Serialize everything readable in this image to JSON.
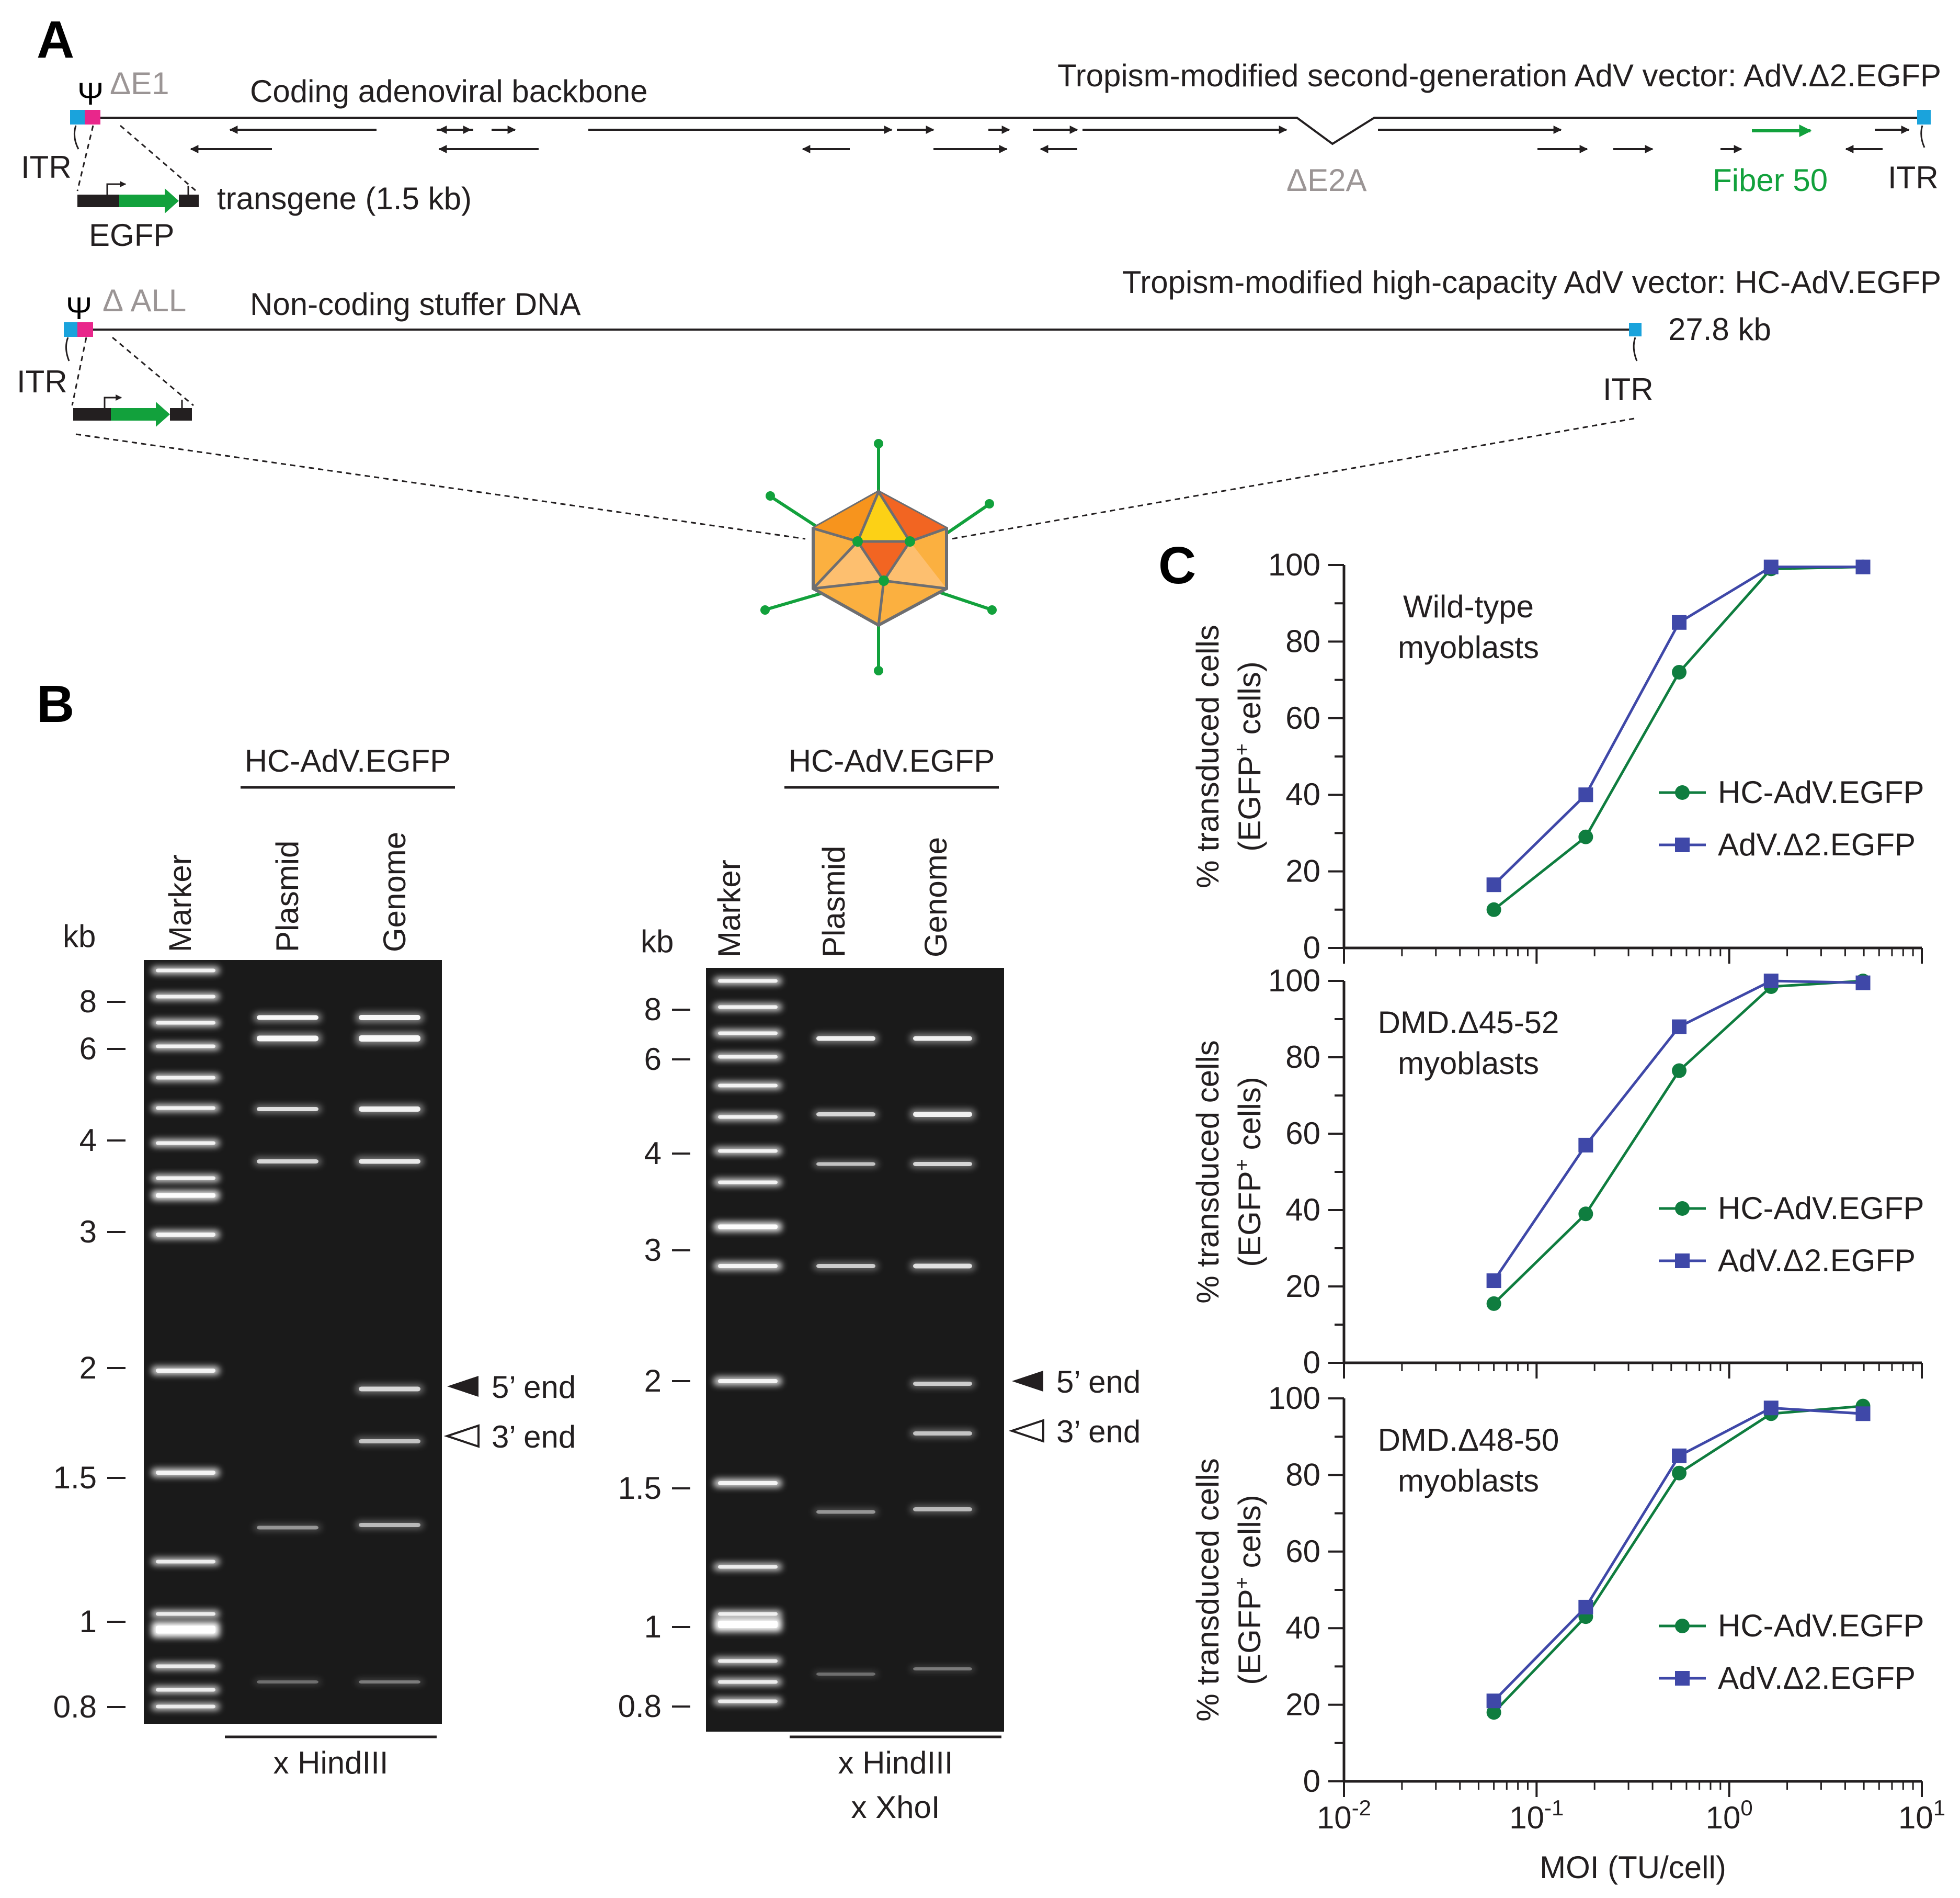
{
  "panel_a": {
    "letter": "A",
    "vector1": {
      "title": "Tropism-modified second-generation AdV vector: AdV.Δ2.EGFP",
      "psi": "Ψ",
      "deletion_e1": "ΔE1",
      "backbone_label": "Coding adenoviral backbone",
      "itr_left": "ITR",
      "itr_right": "ITR",
      "transgene_label": "transgene (1.5 kb)",
      "egfp_label": "EGFP",
      "deletion_e2a": "ΔE2A",
      "fiber_label": "Fiber 50"
    },
    "vector2": {
      "title": "Tropism-modified high-capacity AdV vector: HC-AdV.EGFP",
      "psi": "Ψ",
      "deletion_all": "Δ ALL",
      "stuffer_label": "Non-coding stuffer DNA",
      "size_label": "27.8 kb",
      "itr_left": "ITR",
      "itr_right": "ITR"
    },
    "colors": {
      "itr": "#1aa3dc",
      "psi": "#e9268b",
      "egfp": "#12a13c",
      "gray_text": "#9b9595",
      "capsid_light": "#fbb040",
      "capsid_dark": "#f26522",
      "capsid_yellow": "#fcd116"
    }
  },
  "panel_b": {
    "letter": "B",
    "gel1": {
      "header": "HC-AdV.EGFP",
      "lanes": [
        "Marker",
        "Plasmid",
        "Genome"
      ],
      "kb_label": "kb",
      "marker_ticks": [
        "8",
        "6",
        "4",
        "3",
        "2",
        "1.5",
        "1",
        "0.8"
      ],
      "digest": [
        "x HindIII"
      ],
      "end_labels": [
        "5’ end",
        "3’ end"
      ]
    },
    "gel2": {
      "header": "HC-AdV.EGFP",
      "lanes": [
        "Marker",
        "Plasmid",
        "Genome"
      ],
      "kb_label": "kb",
      "marker_ticks": [
        "8",
        "6",
        "4",
        "3",
        "2",
        "1.5",
        "1",
        "0.8"
      ],
      "digest": [
        "x HindIII",
        "x XhoI"
      ],
      "end_labels": [
        "5’ end",
        "3’ end"
      ]
    }
  },
  "panel_c": {
    "letter": "C"
  },
  "chart_data": [
    {
      "type": "line",
      "title": "Wild-type myoblasts",
      "title_lines": [
        "Wild-type",
        "myoblasts"
      ],
      "ylabel_lines": [
        "% transduced cells",
        "(EGFP",
        "+",
        " cells)"
      ],
      "xlabel": "MOI (TU/cell)",
      "xscale": "log",
      "xlim": [
        0.01,
        10
      ],
      "ylim": [
        0,
        100
      ],
      "yticks": [
        "0",
        "20",
        "40",
        "60",
        "80",
        "100"
      ],
      "x": [
        0.06,
        0.18,
        0.55,
        1.65,
        4.95
      ],
      "series": [
        {
          "name": "HC-AdV.EGFP",
          "values": [
            10,
            29,
            72,
            99,
            99.5
          ],
          "color": "#0f7d3f",
          "marker": "circle"
        },
        {
          "name": "AdV.Δ2.EGFP",
          "values": [
            16.5,
            40,
            85,
            99.5,
            99.5
          ],
          "color": "#3f48a8",
          "marker": "square"
        }
      ],
      "legend": "right"
    },
    {
      "type": "line",
      "title": "DMD.Δ45-52 myoblasts",
      "title_lines": [
        "DMD.Δ45-52",
        "myoblasts"
      ],
      "ylabel_lines": [
        "% transduced cells",
        "(EGFP",
        "+",
        " cells)"
      ],
      "xlabel": "MOI (TU/cell)",
      "xscale": "log",
      "xlim": [
        0.01,
        10
      ],
      "ylim": [
        0,
        100
      ],
      "yticks": [
        "0",
        "20",
        "40",
        "60",
        "80",
        "100"
      ],
      "x": [
        0.06,
        0.18,
        0.55,
        1.65,
        4.95
      ],
      "series": [
        {
          "name": "HC-AdV.EGFP",
          "values": [
            15.5,
            39,
            76.5,
            98.5,
            100
          ],
          "color": "#0f7d3f",
          "marker": "circle"
        },
        {
          "name": "AdV.Δ2.EGFP",
          "values": [
            21.5,
            57,
            88,
            100,
            99.5
          ],
          "color": "#3f48a8",
          "marker": "square"
        }
      ],
      "legend": "right"
    },
    {
      "type": "line",
      "title": "DMD.Δ48-50 myoblasts",
      "title_lines": [
        "DMD.Δ48-50",
        "myoblasts"
      ],
      "ylabel_lines": [
        "% transduced cells",
        "(EGFP",
        "+",
        " cells)"
      ],
      "xlabel": "MOI (TU/cell)",
      "xscale": "log",
      "xlim": [
        0.01,
        10
      ],
      "ylim": [
        0,
        100
      ],
      "yticks": [
        "0",
        "20",
        "40",
        "60",
        "80",
        "100"
      ],
      "xticks_base": "10",
      "xticks_exp": [
        "-2",
        "-1",
        "0",
        "1"
      ],
      "x": [
        0.06,
        0.18,
        0.55,
        1.65,
        4.95
      ],
      "series": [
        {
          "name": "HC-AdV.EGFP",
          "values": [
            18,
            43,
            80.5,
            96,
            98
          ],
          "color": "#0f7d3f",
          "marker": "circle"
        },
        {
          "name": "AdV.Δ2.EGFP",
          "values": [
            21,
            45.5,
            85,
            97.5,
            96
          ],
          "color": "#3f48a8",
          "marker": "square"
        }
      ],
      "legend": "right"
    }
  ]
}
